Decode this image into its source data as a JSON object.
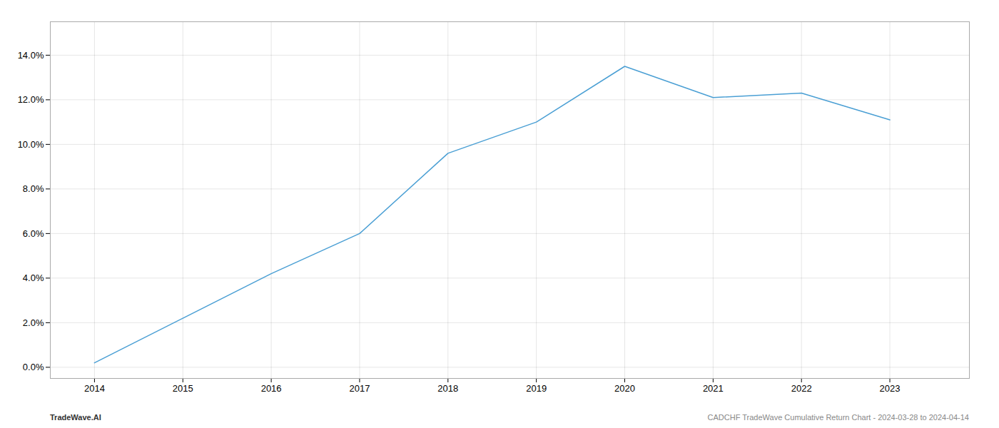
{
  "chart_data": {
    "type": "line",
    "x": [
      2014,
      2015,
      2016,
      2017,
      2018,
      2019,
      2020,
      2021,
      2022,
      2023
    ],
    "values": [
      0.002,
      0.022,
      0.042,
      0.06,
      0.096,
      0.11,
      0.135,
      0.121,
      0.123,
      0.111
    ],
    "color": "#4a9fd4",
    "xlim": [
      2013.5,
      2023.9
    ],
    "xticks": [
      2014,
      2015,
      2016,
      2017,
      2018,
      2019,
      2020,
      2021,
      2022,
      2023
    ],
    "ylim": [
      -0.005,
      0.155
    ],
    "yticks": [
      {
        "value": 0.0,
        "label": "0.0%"
      },
      {
        "value": 0.02,
        "label": "2.0%"
      },
      {
        "value": 0.04,
        "label": "4.0%"
      },
      {
        "value": 0.06,
        "label": "6.0%"
      },
      {
        "value": 0.08,
        "label": "8.0%"
      },
      {
        "value": 0.1,
        "label": "10.0%"
      },
      {
        "value": 0.12,
        "label": "12.0%"
      },
      {
        "value": 0.14,
        "label": "14.0%"
      }
    ],
    "grid": true,
    "annotations": [
      "TradeWave.AI",
      "CADCHF TradeWave Cumulative Return Chart - 2024-03-28 to 2024-04-14"
    ]
  }
}
